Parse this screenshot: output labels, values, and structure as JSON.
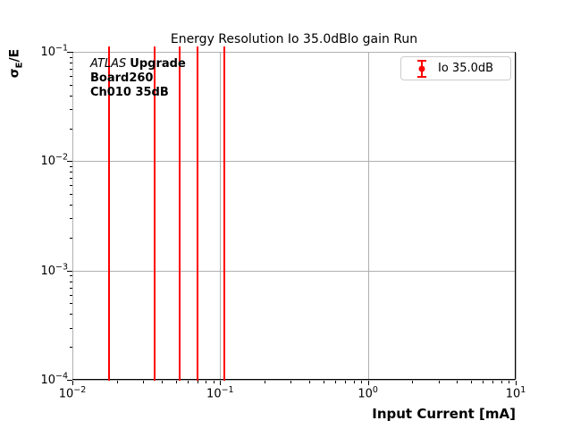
{
  "chart_data": {
    "type": "errorbar",
    "title": "Energy Resolution Io 35.0dBlo gain Run",
    "x_axis": {
      "label": "Input Current [mA]",
      "scale": "log",
      "min": 0.01,
      "max": 10,
      "tick_exponents": [
        -2,
        -1,
        0,
        1
      ]
    },
    "y_axis": {
      "label": "σE/E",
      "scale": "log",
      "min": 0.0001,
      "max": 0.1,
      "tick_exponents": [
        -1,
        -2,
        -3,
        -4
      ]
    },
    "ylabel_parts": {
      "sigma": "σ",
      "subscript": "E",
      "rest": "/E"
    },
    "grid": true,
    "series": [
      {
        "name": "Io 35.0dB",
        "color": "#ff0000",
        "marker": "errorbar-point",
        "x": [
          0.0177,
          0.036,
          0.053,
          0.0705,
          0.106
        ],
        "error_bar_note": "error bars span entire visible y-range, clipped at plot top and bottom"
      }
    ],
    "legend": {
      "label": "Io 35.0dB",
      "position": "upper right"
    },
    "annotation": {
      "brand": "ATLAS",
      "brand_suffix": "Upgrade",
      "line2": "Board260",
      "line3": "Ch010 35dB"
    },
    "colors": {
      "series": "#ff0000",
      "grid": "#b0b0b0",
      "spine": "#000000",
      "background": "#ffffff",
      "legend_border": "#cccccc"
    }
  }
}
